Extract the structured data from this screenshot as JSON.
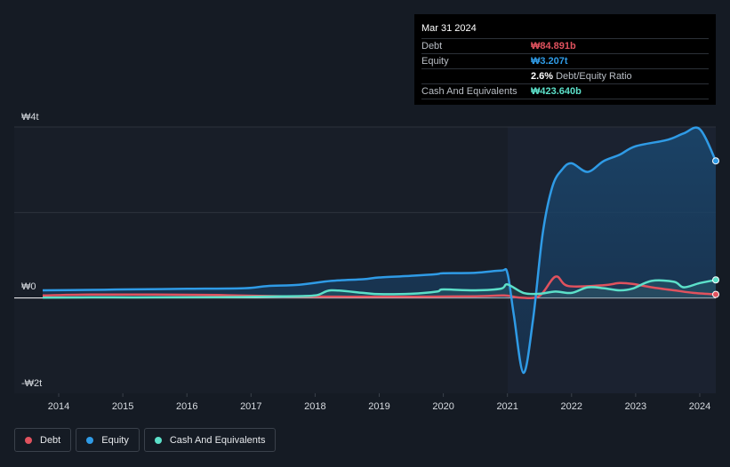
{
  "chart_data": {
    "type": "area",
    "y_ticks": [
      {
        "value": 4000,
        "label": "₩4t"
      },
      {
        "value": 0,
        "label": "₩0"
      },
      {
        "value": -2000,
        "label": "-₩2t"
      }
    ],
    "ylim": [
      -2300,
      4000
    ],
    "xlim": [
      2013.75,
      2024.25
    ],
    "x_ticks": [
      "2014",
      "2015",
      "2016",
      "2017",
      "2018",
      "2019",
      "2020",
      "2021",
      "2022",
      "2023",
      "2024"
    ],
    "series": [
      {
        "name": "Debt",
        "color": "#e0525e",
        "points": [
          [
            2013.75,
            60
          ],
          [
            2014.5,
            80
          ],
          [
            2015.5,
            80
          ],
          [
            2016.5,
            70
          ],
          [
            2017.5,
            40
          ],
          [
            2018.5,
            30
          ],
          [
            2019.5,
            30
          ],
          [
            2020.5,
            40
          ],
          [
            2020.95,
            60
          ],
          [
            2021.2,
            10
          ],
          [
            2021.5,
            50
          ],
          [
            2021.75,
            500
          ],
          [
            2021.95,
            280
          ],
          [
            2022.5,
            300
          ],
          [
            2022.75,
            350
          ],
          [
            2022.95,
            330
          ],
          [
            2023.25,
            250
          ],
          [
            2023.6,
            180
          ],
          [
            2023.9,
            120
          ],
          [
            2024.25,
            84.891
          ]
        ]
      },
      {
        "name": "Equity",
        "color": "#2f9be6",
        "points": [
          [
            2013.75,
            180
          ],
          [
            2014.5,
            190
          ],
          [
            2015,
            200
          ],
          [
            2016,
            215
          ],
          [
            2016.9,
            230
          ],
          [
            2017.25,
            280
          ],
          [
            2017.75,
            310
          ],
          [
            2018.25,
            400
          ],
          [
            2018.75,
            440
          ],
          [
            2019,
            480
          ],
          [
            2019.5,
            520
          ],
          [
            2019.9,
            560
          ],
          [
            2020,
            580
          ],
          [
            2020.5,
            590
          ],
          [
            2020.9,
            640
          ],
          [
            2021,
            580
          ],
          [
            2021.1,
            -400
          ],
          [
            2021.25,
            -1750
          ],
          [
            2021.4,
            -500
          ],
          [
            2021.55,
            1500
          ],
          [
            2021.7,
            2600
          ],
          [
            2021.85,
            3000
          ],
          [
            2022,
            3150
          ],
          [
            2022.25,
            2950
          ],
          [
            2022.5,
            3200
          ],
          [
            2022.75,
            3350
          ],
          [
            2023,
            3550
          ],
          [
            2023.5,
            3700
          ],
          [
            2023.75,
            3850
          ],
          [
            2024,
            3950
          ],
          [
            2024.25,
            3207
          ]
        ]
      },
      {
        "name": "Cash And Equivalents",
        "color": "#5ce0c9",
        "points": [
          [
            2013.75,
            10
          ],
          [
            2014.5,
            15
          ],
          [
            2015.5,
            15
          ],
          [
            2016.5,
            20
          ],
          [
            2017.5,
            40
          ],
          [
            2018,
            60
          ],
          [
            2018.25,
            180
          ],
          [
            2018.75,
            120
          ],
          [
            2019,
            90
          ],
          [
            2019.5,
            100
          ],
          [
            2019.9,
            150
          ],
          [
            2020,
            200
          ],
          [
            2020.5,
            180
          ],
          [
            2020.9,
            220
          ],
          [
            2021,
            320
          ],
          [
            2021.25,
            120
          ],
          [
            2021.5,
            100
          ],
          [
            2021.75,
            150
          ],
          [
            2022,
            120
          ],
          [
            2022.25,
            250
          ],
          [
            2022.5,
            230
          ],
          [
            2022.75,
            180
          ],
          [
            2022.95,
            220
          ],
          [
            2023.25,
            400
          ],
          [
            2023.6,
            380
          ],
          [
            2023.75,
            250
          ],
          [
            2024,
            350
          ],
          [
            2024.25,
            423.64
          ]
        ]
      }
    ],
    "tooltip": {
      "date": "Mar 31 2024",
      "rows": [
        {
          "name": "Debt",
          "value": "₩84.891b",
          "color": "#e0525e"
        },
        {
          "name": "Equity",
          "value": "₩3.207t",
          "color": "#2f9be6"
        },
        {
          "name": "",
          "value": "2.6%",
          "extra": "Debt/Equity Ratio",
          "color": "#ffffff"
        },
        {
          "name": "Cash And Equivalents",
          "value": "₩423.640b",
          "color": "#5ce0c9"
        }
      ]
    },
    "legend_position": "bottom-left",
    "grid": true
  },
  "legend": [
    {
      "label": "Debt",
      "color": "#e0525e"
    },
    {
      "label": "Equity",
      "color": "#2f9be6"
    },
    {
      "label": "Cash And Equivalents",
      "color": "#5ce0c9"
    }
  ]
}
